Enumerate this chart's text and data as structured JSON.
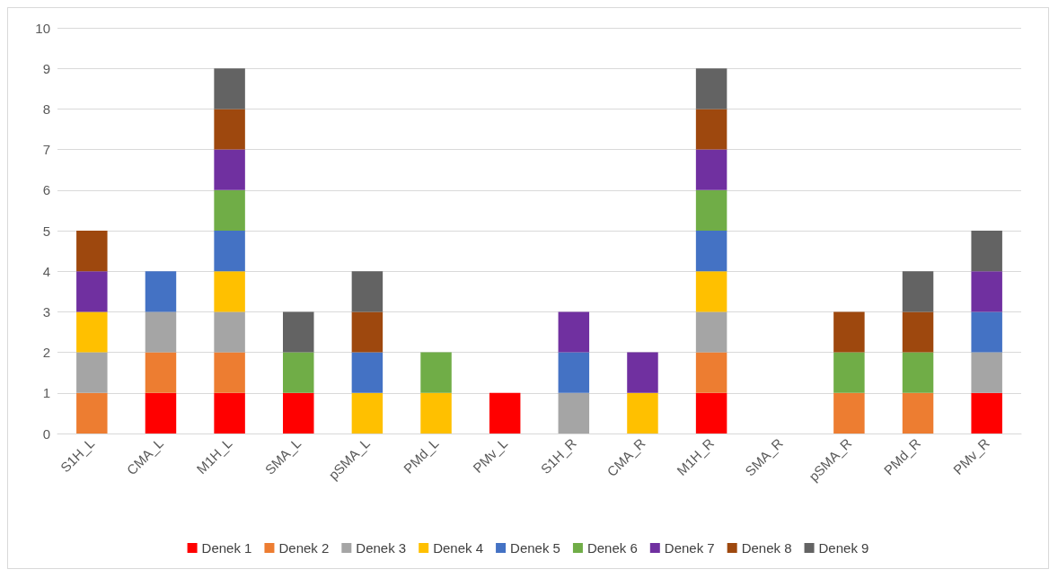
{
  "chart_data": {
    "type": "bar",
    "stacked": true,
    "categories": [
      "S1H_L",
      "CMA_L",
      "M1H_L",
      "SMA_L",
      "pSMA_L",
      "PMd_L",
      "PMv_L",
      "S1H_R",
      "CMA_R",
      "M1H_R",
      "SMA_R",
      "pSMA_R",
      "PMd_R",
      "PMv_R"
    ],
    "series": [
      {
        "name": "Denek 1",
        "color": "#ff0000",
        "values": [
          0,
          1,
          1,
          1,
          0,
          0,
          1,
          0,
          0,
          1,
          0,
          0,
          0,
          1
        ]
      },
      {
        "name": "Denek 2",
        "color": "#ed7d31",
        "values": [
          1,
          1,
          1,
          0,
          0,
          0,
          0,
          0,
          0,
          1,
          0,
          1,
          1,
          0
        ]
      },
      {
        "name": "Denek 3",
        "color": "#a5a5a5",
        "values": [
          1,
          1,
          1,
          0,
          0,
          0,
          0,
          1,
          0,
          1,
          0,
          0,
          0,
          1
        ]
      },
      {
        "name": "Denek 4",
        "color": "#ffc000",
        "values": [
          1,
          0,
          1,
          0,
          1,
          1,
          0,
          0,
          1,
          1,
          0,
          0,
          0,
          0
        ]
      },
      {
        "name": "Denek 5",
        "color": "#4472c4",
        "values": [
          0,
          1,
          1,
          0,
          1,
          0,
          0,
          1,
          0,
          1,
          0,
          0,
          0,
          1
        ]
      },
      {
        "name": "Denek 6",
        "color": "#70ad47",
        "values": [
          0,
          0,
          1,
          1,
          0,
          1,
          0,
          0,
          0,
          1,
          0,
          1,
          1,
          0
        ]
      },
      {
        "name": "Denek 7",
        "color": "#7030a0",
        "values": [
          1,
          0,
          1,
          0,
          0,
          0,
          0,
          1,
          1,
          1,
          0,
          0,
          0,
          1
        ]
      },
      {
        "name": "Denek 8",
        "color": "#9e480e",
        "values": [
          1,
          0,
          1,
          0,
          1,
          0,
          0,
          0,
          0,
          1,
          0,
          1,
          1,
          0
        ]
      },
      {
        "name": "Denek 9",
        "color": "#636363",
        "values": [
          0,
          0,
          1,
          1,
          1,
          0,
          0,
          0,
          0,
          1,
          0,
          0,
          1,
          1
        ]
      }
    ],
    "ylim": [
      0,
      10
    ],
    "yticks": [
      0,
      1,
      2,
      3,
      4,
      5,
      6,
      7,
      8,
      9,
      10
    ],
    "grid": "y",
    "legend": "bottom"
  }
}
